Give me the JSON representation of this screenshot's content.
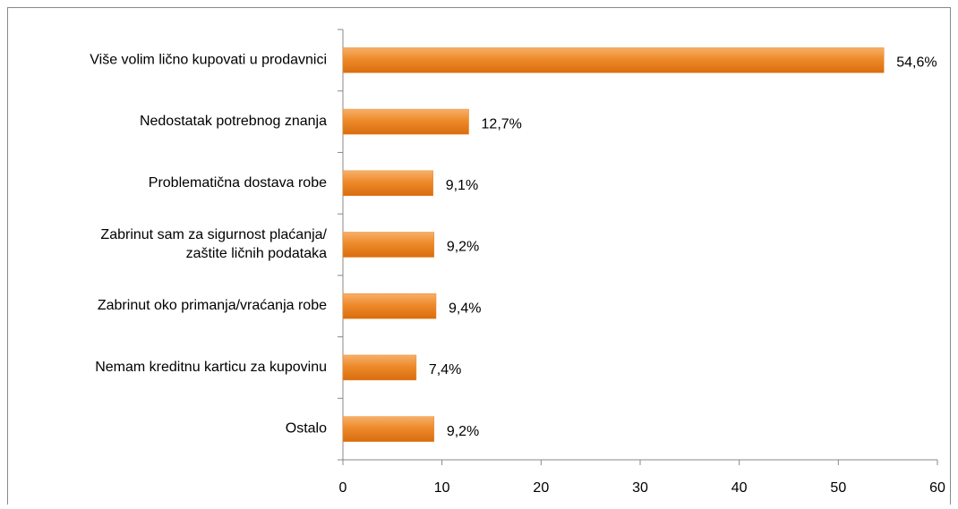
{
  "chart_data": {
    "type": "bar",
    "orientation": "horizontal",
    "categories": [
      "Više volim lično kupovati u prodavnici",
      "Nedostatak potrebnog znanja",
      "Problematična dostava robe",
      "Zabrinut sam za sigurnost plaćanja/\nzaštite ličnih podataka",
      "Zabrinut oko primanja/vraćanja robe",
      "Nemam kreditnu karticu za kupovinu",
      "Ostalo"
    ],
    "values": [
      54.6,
      12.7,
      9.1,
      9.2,
      9.4,
      7.4,
      9.2
    ],
    "value_labels": [
      "54,6%",
      "12,7%",
      "9,1%",
      "9,2%",
      "9,4%",
      "7,4%",
      "9,2%"
    ],
    "color": "#ee8a2a",
    "xlim": [
      0,
      60
    ],
    "xticks": [
      0,
      10,
      20,
      30,
      40,
      50,
      60
    ]
  }
}
